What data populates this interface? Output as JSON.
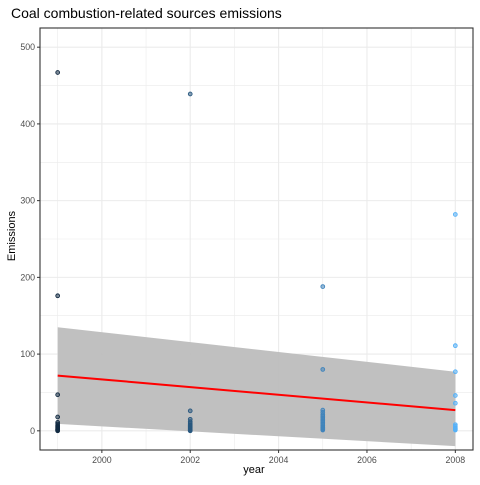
{
  "chart_data": {
    "type": "scatter",
    "title": "Coal combustion-related sources emissions",
    "xlabel": "year",
    "ylabel": "Emissions",
    "xlim": [
      1998.6,
      2008.4
    ],
    "ylim": [
      -25,
      525
    ],
    "xticks": [
      2000,
      2002,
      2004,
      2006,
      2008
    ],
    "yticks": [
      0,
      100,
      200,
      300,
      400,
      500
    ],
    "grid": true,
    "legend": "none",
    "colors": {
      "fill_low": "#132B43",
      "fill_high": "#56B1F7",
      "trend_line": "#ff0000",
      "confidence_band": "#bdbdbd",
      "grid": "#ebebeb",
      "frame": "#333333"
    },
    "series": [
      {
        "x": [
          1999,
          1999,
          1999,
          1999,
          1999,
          1999,
          1999,
          1999,
          1999,
          1999,
          1999,
          1999,
          1999,
          1999,
          1999,
          1999,
          2002,
          2002,
          2002,
          2002,
          2002,
          2002,
          2002,
          2002,
          2002,
          2002,
          2002,
          2002,
          2002,
          2002,
          2002,
          2005,
          2005,
          2005,
          2005,
          2005,
          2005,
          2005,
          2005,
          2005,
          2005,
          2005,
          2005,
          2005,
          2005,
          2005,
          2005,
          2005,
          2008,
          2008,
          2008,
          2008,
          2008,
          2008,
          2008,
          2008,
          2008,
          2008,
          2008
        ],
        "y": [
          467,
          176,
          47,
          18,
          11,
          9,
          7,
          6,
          5,
          4,
          3,
          2,
          1.5,
          1,
          0.5,
          0,
          439,
          26,
          15,
          12,
          10,
          8,
          7,
          6,
          5,
          4,
          3,
          2,
          1,
          0.5,
          0,
          188,
          80,
          27,
          24,
          21,
          19,
          17,
          15,
          13,
          11,
          9,
          7,
          5,
          4,
          3,
          2,
          1,
          282,
          111,
          77,
          46,
          36,
          8,
          6,
          4,
          3,
          2,
          1
        ]
      }
    ],
    "trend": {
      "method": "lm",
      "x": [
        1999,
        2008
      ],
      "y": [
        72,
        27
      ],
      "ci_lower": [
        9,
        -20
      ],
      "ci_upper": [
        135,
        77
      ]
    }
  }
}
